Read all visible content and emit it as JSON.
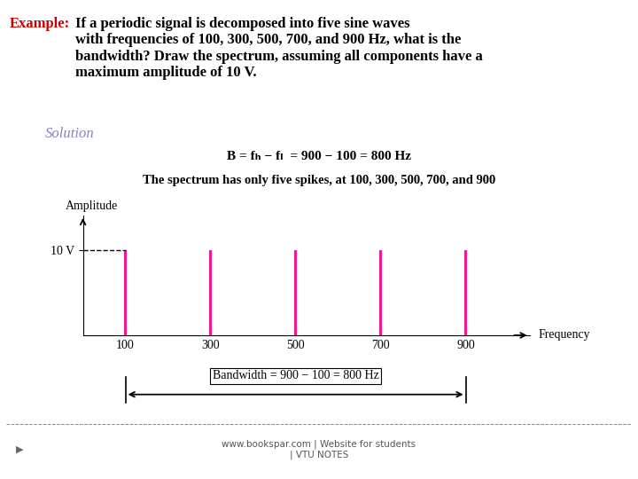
{
  "chart_data": {
    "type": "bar",
    "x": [
      100,
      300,
      500,
      700,
      900
    ],
    "values": [
      10,
      10,
      10,
      10,
      10
    ],
    "color": "#FF1493",
    "xlabel": "Frequency",
    "ylabel": "Amplitude",
    "xlim": [
      0,
      1050
    ],
    "ylim": [
      0,
      14
    ],
    "xticks": [
      100,
      300,
      500,
      700,
      900
    ],
    "yticks": [
      {
        "value": 10,
        "label": "10 V"
      }
    ],
    "grid": false,
    "annotations": [
      {
        "text": "Example:",
        "color": "#cc0000"
      },
      {
        "text": "If a periodic signal is decomposed into five sine waves\nwith frequencies of 100, 300, 500, 700, and 900 Hz, what is the\nbandwidth? Draw the spectrum, assuming all components have a\nmaximum amplitude of 10 V."
      },
      {
        "text": "Solution",
        "color": "#8B7FBF"
      },
      {
        "text": "B = fₕ − fₗ  = 900 − 100 = 800 Hz"
      },
      {
        "text": "The spectrum has only five spikes, at 100, 300, 500, 700, and 900"
      },
      {
        "text": "Bandwidth = 900 − 100 = 800 Hz",
        "x": [
          100,
          900
        ]
      },
      {
        "text": "▶"
      },
      {
        "text": "www.bookspar.com | Website for students\n| VTU NOTES"
      }
    ]
  }
}
